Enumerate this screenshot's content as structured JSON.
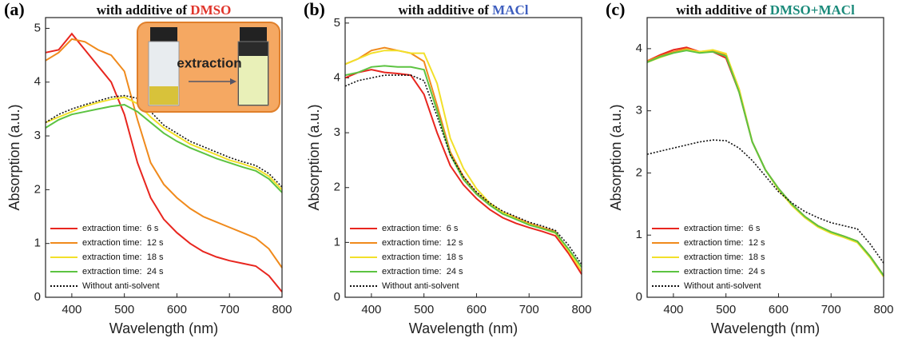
{
  "chart_data": [
    {
      "type": "line",
      "panel_label": "(a)",
      "title_parts": [
        {
          "text": "with additive of ",
          "color": "#111111"
        },
        {
          "text": "DMSO",
          "color": "#e0342a"
        }
      ],
      "xlabel": "Wavelength (nm)",
      "ylabel": "Absorption (a.u.)",
      "inset_text": "extraction",
      "xlim": [
        350,
        800
      ],
      "xticks": [
        400,
        500,
        600,
        700,
        800
      ],
      "ylim": [
        0,
        5.2
      ],
      "yticks": [
        0,
        1,
        2,
        3,
        4,
        5
      ],
      "x": [
        350,
        375,
        400,
        425,
        450,
        475,
        500,
        525,
        550,
        575,
        600,
        625,
        650,
        675,
        700,
        725,
        750,
        775,
        800
      ],
      "legend": "lower left",
      "series": [
        {
          "name": "extraction time:  6 s",
          "color": "#e8261f",
          "values": [
            4.55,
            4.6,
            4.9,
            4.6,
            4.3,
            4.0,
            3.4,
            2.5,
            1.85,
            1.45,
            1.2,
            1.0,
            0.85,
            0.75,
            0.68,
            0.63,
            0.58,
            0.4,
            0.1
          ]
        },
        {
          "name": "extraction time:  12 s",
          "color": "#f08a1c",
          "values": [
            4.4,
            4.55,
            4.8,
            4.75,
            4.6,
            4.5,
            4.2,
            3.3,
            2.5,
            2.1,
            1.85,
            1.65,
            1.5,
            1.4,
            1.3,
            1.2,
            1.1,
            0.9,
            0.55
          ]
        },
        {
          "name": "extraction time:  18 s",
          "color": "#f2e02a",
          "values": [
            3.25,
            3.35,
            3.45,
            3.55,
            3.62,
            3.68,
            3.72,
            3.6,
            3.35,
            3.15,
            3.0,
            2.85,
            2.75,
            2.65,
            2.55,
            2.48,
            2.4,
            2.25,
            2.0
          ]
        },
        {
          "name": "extraction time:  24 s",
          "color": "#5cc341",
          "values": [
            3.15,
            3.3,
            3.4,
            3.45,
            3.5,
            3.55,
            3.58,
            3.45,
            3.25,
            3.05,
            2.9,
            2.78,
            2.68,
            2.58,
            2.5,
            2.42,
            2.35,
            2.2,
            1.95
          ]
        },
        {
          "name": "Without anti-solvent",
          "color": "#111111",
          "dash": "dotted",
          "values": [
            3.25,
            3.4,
            3.5,
            3.58,
            3.65,
            3.72,
            3.75,
            3.7,
            3.45,
            3.2,
            3.05,
            2.9,
            2.8,
            2.7,
            2.6,
            2.52,
            2.45,
            2.3,
            2.05
          ]
        }
      ]
    },
    {
      "type": "line",
      "panel_label": "(b)",
      "title_parts": [
        {
          "text": "with additive of ",
          "color": "#111111"
        },
        {
          "text": "MACl",
          "color": "#3f5fbf"
        }
      ],
      "xlabel": "Wavelength (nm)",
      "ylabel": "Absorption (a.u.)",
      "xlim": [
        350,
        800
      ],
      "xticks": [
        400,
        500,
        600,
        700,
        800
      ],
      "ylim": [
        0,
        5.1
      ],
      "yticks": [
        0,
        1,
        2,
        3,
        4,
        5
      ],
      "x": [
        350,
        375,
        400,
        425,
        450,
        475,
        500,
        525,
        550,
        575,
        600,
        625,
        650,
        675,
        700,
        725,
        750,
        775,
        800
      ],
      "legend": "lower left",
      "series": [
        {
          "name": "extraction time:  6 s",
          "color": "#e8261f",
          "values": [
            4.0,
            4.1,
            4.15,
            4.1,
            4.08,
            4.05,
            3.7,
            3.0,
            2.4,
            2.05,
            1.8,
            1.6,
            1.45,
            1.35,
            1.27,
            1.2,
            1.12,
            0.8,
            0.42
          ]
        },
        {
          "name": "extraction time:  12 s",
          "color": "#f08a1c",
          "values": [
            4.25,
            4.35,
            4.5,
            4.55,
            4.5,
            4.45,
            4.3,
            3.5,
            2.65,
            2.2,
            1.9,
            1.7,
            1.55,
            1.45,
            1.35,
            1.27,
            1.2,
            0.85,
            0.48
          ]
        },
        {
          "name": "extraction time:  18 s",
          "color": "#f2e02a",
          "values": [
            4.25,
            4.35,
            4.45,
            4.5,
            4.5,
            4.45,
            4.45,
            3.9,
            2.9,
            2.35,
            1.98,
            1.72,
            1.55,
            1.43,
            1.33,
            1.25,
            1.17,
            0.85,
            0.48
          ]
        },
        {
          "name": "extraction time:  24 s",
          "color": "#5cc341",
          "values": [
            4.05,
            4.1,
            4.2,
            4.22,
            4.2,
            4.2,
            4.15,
            3.4,
            2.6,
            2.15,
            1.88,
            1.68,
            1.52,
            1.42,
            1.32,
            1.25,
            1.18,
            0.88,
            0.55
          ]
        },
        {
          "name": "Without anti-solvent",
          "color": "#111111",
          "dash": "dotted",
          "values": [
            3.85,
            3.95,
            4.0,
            4.05,
            4.05,
            4.05,
            3.95,
            3.3,
            2.6,
            2.2,
            1.92,
            1.72,
            1.57,
            1.47,
            1.37,
            1.3,
            1.22,
            0.95,
            0.6
          ]
        }
      ]
    },
    {
      "type": "line",
      "panel_label": "(c)",
      "title_parts": [
        {
          "text": "with additive of ",
          "color": "#111111"
        },
        {
          "text": "DMSO+MACl",
          "color": "#1a8a7a"
        }
      ],
      "xlabel": "Wavelength (nm)",
      "ylabel": "Absorption (a.u.)",
      "xlim": [
        350,
        800
      ],
      "xticks": [
        400,
        500,
        600,
        700,
        800
      ],
      "ylim": [
        0,
        4.5
      ],
      "yticks": [
        0,
        1,
        2,
        3,
        4
      ],
      "x": [
        350,
        375,
        400,
        425,
        450,
        475,
        500,
        525,
        550,
        575,
        600,
        625,
        650,
        675,
        700,
        725,
        750,
        775,
        800
      ],
      "legend": "lower left",
      "series": [
        {
          "name": "extraction time:  6 s",
          "color": "#e8261f",
          "values": [
            3.8,
            3.9,
            3.98,
            4.02,
            3.95,
            3.95,
            3.85,
            3.3,
            2.5,
            2.05,
            1.75,
            1.5,
            1.3,
            1.15,
            1.05,
            0.98,
            0.9,
            0.65,
            0.35
          ]
        },
        {
          "name": "extraction time:  12 s",
          "color": "#f08a1c",
          "values": [
            3.8,
            3.88,
            3.95,
            4.0,
            3.95,
            3.97,
            3.9,
            3.35,
            2.5,
            2.05,
            1.75,
            1.5,
            1.3,
            1.15,
            1.05,
            0.98,
            0.9,
            0.65,
            0.35
          ]
        },
        {
          "name": "extraction time:  18 s",
          "color": "#f2e02a",
          "values": [
            3.78,
            3.86,
            3.93,
            3.98,
            3.95,
            3.98,
            3.92,
            3.35,
            2.5,
            2.05,
            1.73,
            1.48,
            1.28,
            1.13,
            1.03,
            0.96,
            0.88,
            0.63,
            0.33
          ]
        },
        {
          "name": "extraction time:  24 s",
          "color": "#5cc341",
          "values": [
            3.78,
            3.87,
            3.93,
            3.97,
            3.93,
            3.95,
            3.88,
            3.3,
            2.5,
            2.05,
            1.75,
            1.5,
            1.3,
            1.15,
            1.05,
            0.98,
            0.9,
            0.65,
            0.35
          ]
        },
        {
          "name": "Without anti-solvent",
          "color": "#111111",
          "dash": "dotted",
          "values": [
            2.3,
            2.35,
            2.4,
            2.45,
            2.5,
            2.53,
            2.52,
            2.4,
            2.2,
            1.95,
            1.7,
            1.52,
            1.38,
            1.28,
            1.2,
            1.15,
            1.1,
            0.85,
            0.55
          ]
        }
      ]
    }
  ]
}
